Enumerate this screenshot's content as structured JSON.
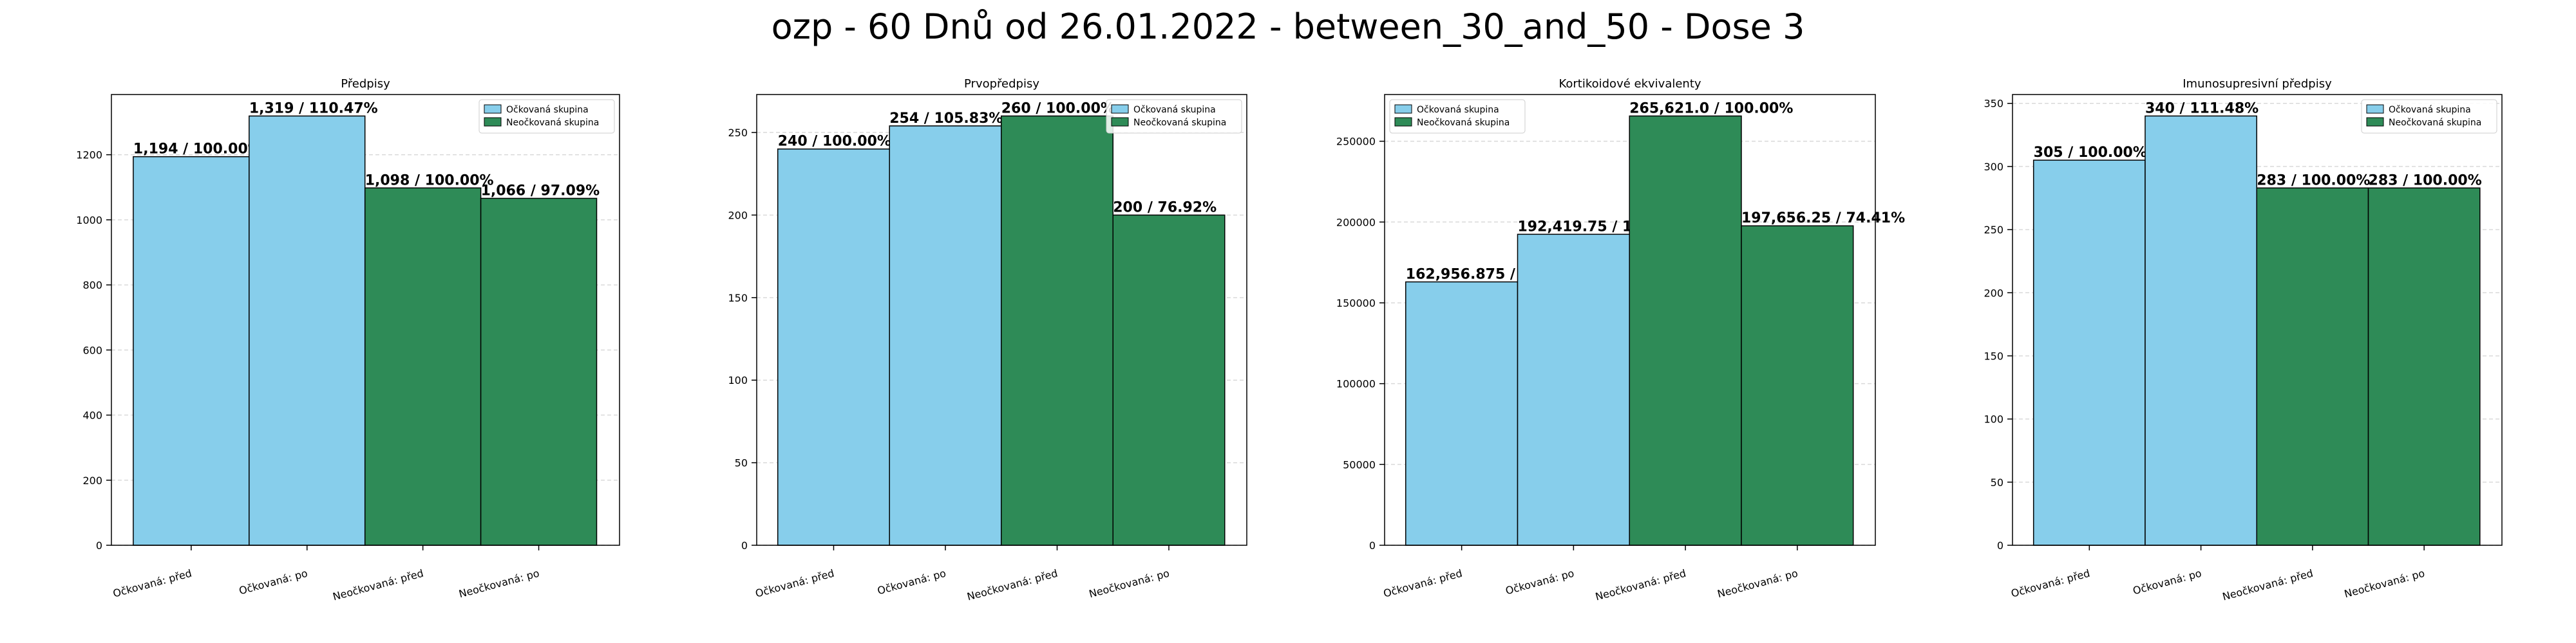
{
  "figure": {
    "title": "ozp - 60 Dnů od 26.01.2022 - between_30_and_50 - Dose 3"
  },
  "legend_labels": [
    "Očkovaná skupina",
    "Neočkovaná skupina"
  ],
  "colors": {
    "vaccinated": "#87CEEB",
    "unvaccinated": "#2E8B57",
    "grid": "#d9d9d9",
    "axis": "#000000"
  },
  "chart_data": [
    {
      "type": "bar",
      "title": "Předpisy",
      "categories": [
        "Očkovaná: před",
        "Očkovaná: po",
        "Neočkovaná: před",
        "Neočkovaná: po"
      ],
      "values": [
        1194,
        1319,
        1098,
        1066
      ],
      "data_labels": [
        "1,194 / 100.00%",
        "1,319 / 110.47%",
        "1,098 / 100.00%",
        "1,066 / 97.09%"
      ],
      "groups": [
        "vaccinated",
        "vaccinated",
        "unvaccinated",
        "unvaccinated"
      ],
      "ylim": [
        0,
        1385
      ],
      "yticks": [
        0,
        200,
        400,
        600,
        800,
        1000,
        1200
      ],
      "legend": "top-right",
      "grid": true
    },
    {
      "type": "bar",
      "title": "Prvopředpisy",
      "categories": [
        "Očkovaná: před",
        "Očkovaná: po",
        "Neočkovaná: před",
        "Neočkovaná: po"
      ],
      "values": [
        240,
        254,
        260,
        200
      ],
      "data_labels": [
        "240 / 100.00%",
        "254 / 105.83%",
        "260 / 100.00%",
        "200 / 76.92%"
      ],
      "groups": [
        "vaccinated",
        "vaccinated",
        "unvaccinated",
        "unvaccinated"
      ],
      "ylim": [
        0,
        273
      ],
      "yticks": [
        0,
        50,
        100,
        150,
        200,
        250
      ],
      "legend": "top-right",
      "grid": true
    },
    {
      "type": "bar",
      "title": "Kortikoidové ekvivalenty",
      "categories": [
        "Očkovaná: před",
        "Očkovaná: po",
        "Neočkovaná: před",
        "Neočkovaná: po"
      ],
      "values": [
        162956.875,
        192419.75,
        265621.0,
        197656.25
      ],
      "data_labels": [
        "162,956.875 / 100.00%",
        "192,419.75 / 118.08%",
        "265,621.0 / 100.00%",
        "197,656.25 / 74.41%"
      ],
      "groups": [
        "vaccinated",
        "vaccinated",
        "unvaccinated",
        "unvaccinated"
      ],
      "ylim": [
        0,
        278900
      ],
      "yticks": [
        0,
        50000,
        100000,
        150000,
        200000,
        250000
      ],
      "legend": "top-left",
      "grid": true
    },
    {
      "type": "bar",
      "title": "Imunosupresivní předpisy",
      "categories": [
        "Očkovaná: před",
        "Očkovaná: po",
        "Neočkovaná: před",
        "Neočkovaná: po"
      ],
      "values": [
        305,
        340,
        283,
        283
      ],
      "data_labels": [
        "305 / 100.00%",
        "340 / 111.48%",
        "283 / 100.00%",
        "283 / 100.00%"
      ],
      "groups": [
        "vaccinated",
        "vaccinated",
        "unvaccinated",
        "unvaccinated"
      ],
      "ylim": [
        0,
        357
      ],
      "yticks": [
        0,
        50,
        100,
        150,
        200,
        250,
        300,
        350
      ],
      "legend": "top-right",
      "grid": true
    }
  ]
}
